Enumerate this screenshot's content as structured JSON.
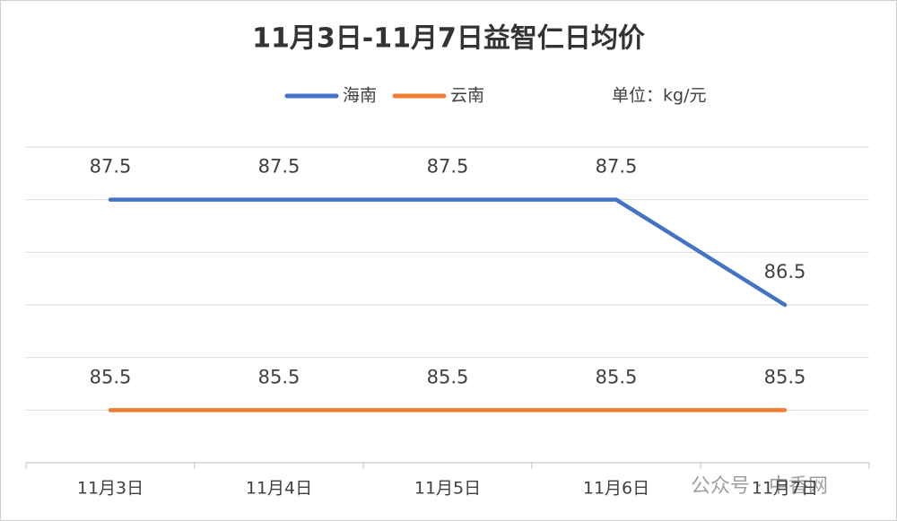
{
  "chart_data": {
    "type": "line",
    "title": "11月3日-11月7日益智仁日均价",
    "unit_note": "单位：kg/元",
    "watermark": "公众号 · 中香网",
    "categories": [
      "11月3日",
      "11月4日",
      "11月5日",
      "11月6日",
      "11月7日"
    ],
    "series": [
      {
        "name": "海南",
        "color": "#4472c4",
        "values": [
          87.5,
          87.5,
          87.5,
          87.5,
          86.5
        ]
      },
      {
        "name": "云南",
        "color": "#ed7d31",
        "values": [
          85.5,
          85.5,
          85.5,
          85.5,
          85.5
        ]
      }
    ],
    "ylim": [
      85,
      88
    ],
    "yticks": [
      85,
      85.5,
      86,
      86.5,
      87,
      87.5,
      88
    ],
    "grid": true
  }
}
